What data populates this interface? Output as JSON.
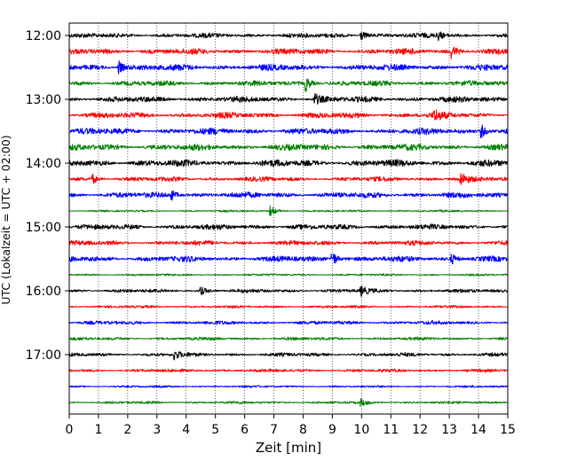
{
  "chart_data": {
    "type": "line",
    "title": "",
    "xlabel": "Zeit  [min]",
    "ylabel": "UTC (Lokalzeit = UTC + 02:00)",
    "xlim": [
      0,
      15
    ],
    "x_ticks": [
      "0",
      "1",
      "2",
      "3",
      "4",
      "5",
      "6",
      "7",
      "8",
      "9",
      "10",
      "11",
      "12",
      "13",
      "14",
      "15"
    ],
    "y_tick_labels": [
      "12:00",
      "13:00",
      "14:00",
      "15:00",
      "16:00",
      "17:00"
    ],
    "grid": "vertical dotted at each minute",
    "trace_colors": [
      "#000000",
      "#ff0000",
      "#0000ff",
      "#008000"
    ],
    "traces": [
      {
        "start": "12:00",
        "color": "#000000",
        "amplitude": 0.45,
        "events": [
          {
            "t": 10.0,
            "a": 0.9
          },
          {
            "t": 12.6,
            "a": 1.0
          }
        ]
      },
      {
        "start": "12:15",
        "color": "#ff0000",
        "amplitude": 0.55,
        "events": [
          {
            "t": 13.1,
            "a": 1.2
          }
        ]
      },
      {
        "start": "12:30",
        "color": "#0000ff",
        "amplitude": 0.6,
        "events": [
          {
            "t": 1.7,
            "a": 1.3
          }
        ]
      },
      {
        "start": "12:45",
        "color": "#008000",
        "amplitude": 0.5,
        "events": [
          {
            "t": 8.1,
            "a": 1.5
          }
        ]
      },
      {
        "start": "13:00",
        "color": "#000000",
        "amplitude": 0.55,
        "events": [
          {
            "t": 8.4,
            "a": 1.1
          }
        ]
      },
      {
        "start": "13:15",
        "color": "#ff0000",
        "amplitude": 0.55,
        "events": [
          {
            "t": 12.5,
            "a": 1.0
          }
        ]
      },
      {
        "start": "13:30",
        "color": "#0000ff",
        "amplitude": 0.6,
        "events": [
          {
            "t": 14.1,
            "a": 1.3
          }
        ]
      },
      {
        "start": "13:45",
        "color": "#008000",
        "amplitude": 0.6,
        "events": []
      },
      {
        "start": "14:00",
        "color": "#000000",
        "amplitude": 0.65,
        "events": []
      },
      {
        "start": "14:15",
        "color": "#ff0000",
        "amplitude": 0.45,
        "events": [
          {
            "t": 0.8,
            "a": 0.9
          },
          {
            "t": 13.4,
            "a": 1.2
          }
        ]
      },
      {
        "start": "14:30",
        "color": "#0000ff",
        "amplitude": 0.55,
        "events": [
          {
            "t": 3.5,
            "a": 1.0
          }
        ]
      },
      {
        "start": "14:45",
        "color": "#008000",
        "amplitude": 0.18,
        "events": [
          {
            "t": 6.9,
            "a": 1.0
          }
        ]
      },
      {
        "start": "15:00",
        "color": "#000000",
        "amplitude": 0.5,
        "events": []
      },
      {
        "start": "15:15",
        "color": "#ff0000",
        "amplitude": 0.45,
        "events": []
      },
      {
        "start": "15:30",
        "color": "#0000ff",
        "amplitude": 0.55,
        "events": [
          {
            "t": 9.0,
            "a": 1.6
          },
          {
            "t": 13.1,
            "a": 0.9
          }
        ]
      },
      {
        "start": "15:45",
        "color": "#008000",
        "amplitude": 0.2,
        "events": []
      },
      {
        "start": "16:00",
        "color": "#000000",
        "amplitude": 0.35,
        "events": [
          {
            "t": 4.5,
            "a": 0.8
          },
          {
            "t": 10.0,
            "a": 0.9
          }
        ]
      },
      {
        "start": "16:15",
        "color": "#ff0000",
        "amplitude": 0.25,
        "events": []
      },
      {
        "start": "16:30",
        "color": "#0000ff",
        "amplitude": 0.35,
        "events": []
      },
      {
        "start": "16:45",
        "color": "#008000",
        "amplitude": 0.3,
        "events": []
      },
      {
        "start": "17:00",
        "color": "#000000",
        "amplitude": 0.35,
        "events": [
          {
            "t": 3.6,
            "a": 1.0
          }
        ]
      },
      {
        "start": "17:15",
        "color": "#ff0000",
        "amplitude": 0.3,
        "events": []
      },
      {
        "start": "17:30",
        "color": "#0000ff",
        "amplitude": 0.2,
        "events": []
      },
      {
        "start": "17:45",
        "color": "#008000",
        "amplitude": 0.25,
        "events": [
          {
            "t": 10.0,
            "a": 0.6
          }
        ]
      }
    ]
  }
}
